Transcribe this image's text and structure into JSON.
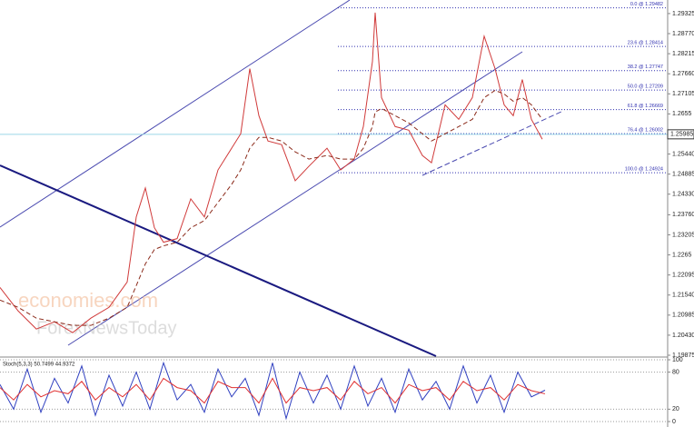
{
  "chart_data": [
    {
      "type": "line",
      "xlim": [
        0,
        735
      ],
      "ylim": [
        1.1985,
        1.297
      ],
      "yticks": [
        1.29325,
        {
          "value": 1.2877,
          "label": "1.28770"
        },
        1.28215,
        {
          "value": 1.2766,
          "label": "1.27660"
        },
        1.27105,
        1.2655,
        1.25995,
        {
          "value": 1.2544,
          "label": "1.25440"
        },
        1.24885,
        {
          "value": 1.2433,
          "label": "1.24330"
        },
        {
          "value": 1.2376,
          "label": "1.23760"
        },
        1.23205,
        1.2265,
        1.22095,
        {
          "value": 1.2154,
          "label": "1.21540"
        },
        1.20985,
        {
          "value": 1.2043,
          "label": "1.20430"
        },
        1.19875
      ],
      "last_price": 1.25985,
      "fib_levels": [
        {
          "value": 1.29482,
          "label": "0.0 @ 1.29482"
        },
        {
          "value": 1.28414,
          "label": "23.6 @ 1.28414"
        },
        {
          "value": 1.27747,
          "label": "38.2 @ 1.27747"
        },
        {
          "value": 1.27209,
          "label": "50.0 @ 1.27209"
        },
        {
          "value": 1.26669,
          "label": "61.8 @ 1.26669"
        },
        {
          "value": 1.26002,
          "label": "76.4 @ 1.26002"
        },
        {
          "value": 1.24924,
          "label": "100.0 @ 1.24924"
        }
      ],
      "watermarks": [
        "economies.com",
        "ForexNewsToday"
      ],
      "x": [
        0,
        20,
        40,
        60,
        80,
        100,
        120,
        140,
        150,
        160,
        170,
        180,
        195,
        210,
        225,
        240,
        255,
        265,
        275,
        285,
        295,
        310,
        325,
        340,
        360,
        375,
        390,
        400,
        410,
        413,
        420,
        435,
        450,
        465,
        475,
        490,
        505,
        520,
        533,
        545,
        555,
        565,
        575,
        585,
        597
      ],
      "series": [
        {
          "color": "#d03a3a",
          "values": [
            1.2175,
            1.211,
            1.206,
            1.208,
            1.205,
            1.209,
            1.212,
            1.219,
            1.237,
            1.245,
            1.234,
            1.23,
            1.231,
            1.242,
            1.237,
            1.25,
            1.256,
            1.26,
            1.278,
            1.265,
            1.258,
            1.257,
            1.247,
            1.251,
            1.256,
            1.25,
            1.253,
            1.262,
            1.28,
            1.2935,
            1.27,
            1.262,
            1.261,
            1.254,
            1.252,
            1.268,
            1.264,
            1.27,
            1.287,
            1.278,
            1.268,
            1.265,
            1.275,
            1.264,
            1.2585
          ]
        },
        {
          "color": "#8b2a1a",
          "values": [
            1.214,
            1.212,
            1.209,
            1.208,
            1.207,
            1.207,
            1.209,
            1.212,
            1.218,
            1.224,
            1.228,
            1.229,
            1.23,
            1.234,
            1.236,
            1.241,
            1.246,
            1.25,
            1.256,
            1.259,
            1.259,
            1.258,
            1.255,
            1.253,
            1.254,
            1.253,
            1.253,
            1.256,
            1.262,
            1.266,
            1.267,
            1.265,
            1.263,
            1.26,
            1.258,
            1.26,
            1.262,
            1.264,
            1.27,
            1.272,
            1.271,
            1.269,
            1.27,
            1.268,
            1.264
          ]
        }
      ]
    },
    {
      "type": "line",
      "title": "Stoch(5,3,3) 50.7499 44.9372",
      "xlim": [
        0,
        735
      ],
      "ylim": [
        0,
        100
      ],
      "yticks": [
        0,
        20,
        80,
        100
      ],
      "x": [
        0,
        15,
        30,
        45,
        60,
        75,
        90,
        105,
        120,
        135,
        150,
        165,
        180,
        195,
        210,
        225,
        240,
        255,
        270,
        285,
        300,
        315,
        330,
        345,
        360,
        375,
        390,
        405,
        420,
        435,
        450,
        465,
        480,
        495,
        510,
        525,
        540,
        555,
        570,
        585,
        600
      ],
      "series": [
        {
          "color": "#3040c0",
          "values": [
            60,
            20,
            85,
            15,
            70,
            30,
            90,
            10,
            75,
            25,
            80,
            20,
            95,
            35,
            60,
            15,
            85,
            40,
            70,
            10,
            95,
            5,
            80,
            30,
            75,
            20,
            90,
            25,
            70,
            15,
            85,
            35,
            65,
            20,
            90,
            30,
            75,
            15,
            80,
            40,
            50.7499
          ]
        },
        {
          "color": "#e03030",
          "values": [
            55,
            35,
            60,
            40,
            50,
            45,
            65,
            35,
            55,
            40,
            60,
            35,
            70,
            55,
            50,
            30,
            65,
            55,
            55,
            30,
            70,
            30,
            55,
            50,
            55,
            35,
            65,
            45,
            55,
            30,
            60,
            50,
            55,
            35,
            65,
            50,
            55,
            35,
            60,
            50,
            44.9372
          ]
        }
      ]
    }
  ]
}
